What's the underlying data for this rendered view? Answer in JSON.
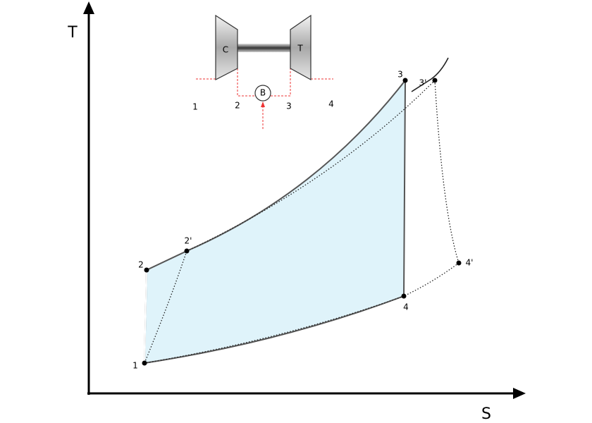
{
  "axes": {
    "y_label": "T",
    "x_label": "S"
  },
  "points": [
    "1",
    "2",
    "2'",
    "3",
    "3'",
    "4",
    "4'"
  ],
  "engine": {
    "compressor": "C",
    "turbine": "T",
    "burner": "B",
    "stations": [
      "1",
      "2",
      "3",
      "4"
    ]
  }
}
